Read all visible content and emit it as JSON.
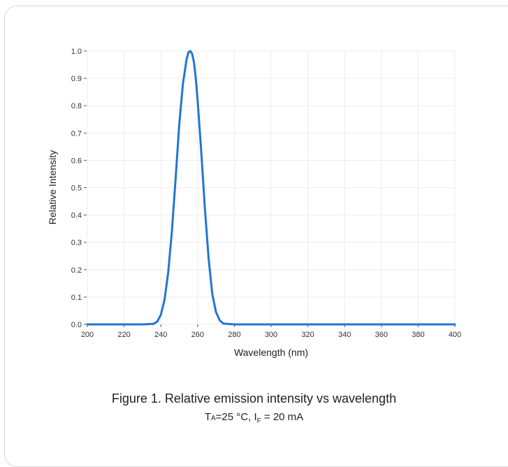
{
  "figure": {
    "caption": "Figure 1. Relative emission intensity vs wavelength",
    "conditions": {
      "ta_symbol": "T",
      "ta_subscript": "A",
      "ta_value": "=25 °C, ",
      "if_symbol": "I",
      "if_subscript": "F",
      "if_value": " = 20 mA"
    }
  },
  "chart_data": {
    "type": "line",
    "xlabel": "Wavelength (nm)",
    "ylabel": "Relative Intensity",
    "xlim": [
      200,
      400
    ],
    "ylim": [
      0,
      1.0
    ],
    "x_ticks": [
      200,
      220,
      240,
      260,
      280,
      300,
      320,
      340,
      360,
      380,
      400
    ],
    "y_ticks": [
      "0.0",
      "0.1",
      "0.2",
      "0.3",
      "0.4",
      "0.5",
      "0.6",
      "0.7",
      "0.8",
      "0.9",
      "1.0"
    ],
    "grid": true,
    "line_color": "#1f77d4",
    "series": [
      {
        "x": [
          200,
          230,
          236,
          238,
          240,
          242,
          244,
          246,
          248,
          250,
          252,
          254,
          255,
          256,
          257,
          258,
          259,
          260,
          262,
          264,
          266,
          268,
          270,
          272,
          274,
          280,
          400
        ],
        "y": [
          0,
          0,
          0.002,
          0.01,
          0.035,
          0.09,
          0.19,
          0.34,
          0.53,
          0.73,
          0.88,
          0.97,
          0.995,
          1.0,
          0.99,
          0.96,
          0.9,
          0.82,
          0.63,
          0.42,
          0.24,
          0.11,
          0.045,
          0.015,
          0.003,
          0,
          0
        ]
      }
    ]
  }
}
